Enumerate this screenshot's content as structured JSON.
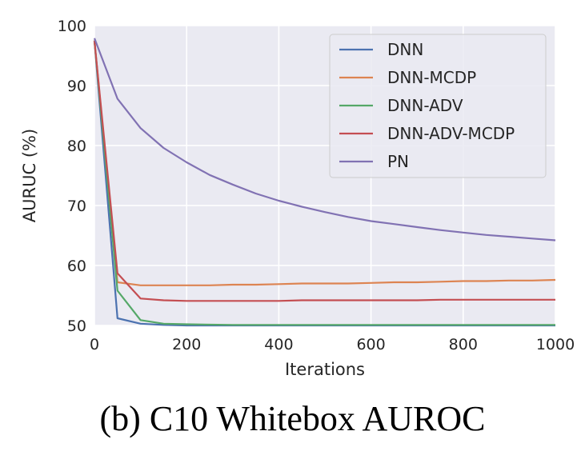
{
  "caption": "(b) C10 Whitebox AUROC",
  "chart_data": {
    "type": "line",
    "title": "",
    "xlabel": "Iterations",
    "ylabel": "AURUC (%)",
    "xlim": [
      0,
      1000
    ],
    "ylim": [
      50,
      100
    ],
    "xticks": [
      0,
      200,
      400,
      600,
      800,
      1000
    ],
    "yticks": [
      50,
      60,
      70,
      80,
      90,
      100
    ],
    "grid": true,
    "legend_position": "top-right",
    "background": "#eaeaf2",
    "series": [
      {
        "name": "DNN",
        "color": "#4c72b0",
        "x": [
          0,
          50,
          100,
          150,
          200,
          300,
          400,
          500,
          600,
          700,
          800,
          900,
          1000
        ],
        "y": [
          97.5,
          51.2,
          50.3,
          50.1,
          50.0,
          50.0,
          50.0,
          50.0,
          50.0,
          50.0,
          50.0,
          50.0,
          50.0
        ]
      },
      {
        "name": "DNN-MCDP",
        "color": "#dd8452",
        "x": [
          0,
          50,
          100,
          150,
          200,
          250,
          300,
          350,
          400,
          450,
          500,
          550,
          600,
          650,
          700,
          750,
          800,
          850,
          900,
          950,
          1000
        ],
        "y": [
          97.5,
          57.2,
          56.7,
          56.7,
          56.7,
          56.7,
          56.8,
          56.8,
          56.9,
          57.0,
          57.0,
          57.0,
          57.1,
          57.2,
          57.2,
          57.3,
          57.4,
          57.4,
          57.5,
          57.5,
          57.6
        ]
      },
      {
        "name": "DNN-ADV",
        "color": "#55a868",
        "x": [
          0,
          50,
          100,
          150,
          200,
          300,
          400,
          500,
          600,
          700,
          800,
          900,
          1000
        ],
        "y": [
          97.5,
          55.8,
          50.9,
          50.3,
          50.2,
          50.1,
          50.1,
          50.1,
          50.1,
          50.1,
          50.1,
          50.1,
          50.1
        ]
      },
      {
        "name": "DNN-ADV-MCDP",
        "color": "#c44e52",
        "x": [
          0,
          50,
          100,
          150,
          200,
          300,
          400,
          450,
          500,
          600,
          700,
          750,
          800,
          900,
          1000
        ],
        "y": [
          97.5,
          58.7,
          54.5,
          54.2,
          54.1,
          54.1,
          54.1,
          54.2,
          54.2,
          54.2,
          54.2,
          54.3,
          54.3,
          54.3,
          54.3
        ]
      },
      {
        "name": "PN",
        "color": "#8172b3",
        "x": [
          0,
          50,
          100,
          150,
          200,
          250,
          300,
          350,
          400,
          450,
          500,
          550,
          600,
          650,
          700,
          750,
          800,
          850,
          900,
          950,
          1000
        ],
        "y": [
          97.9,
          87.8,
          82.9,
          79.6,
          77.2,
          75.1,
          73.5,
          72.0,
          70.8,
          69.8,
          68.9,
          68.1,
          67.4,
          66.9,
          66.4,
          65.9,
          65.5,
          65.1,
          64.8,
          64.5,
          64.2
        ]
      }
    ]
  }
}
